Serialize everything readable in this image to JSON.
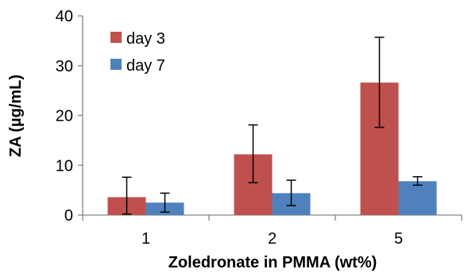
{
  "chart_data": {
    "type": "bar",
    "categories": [
      "1",
      "2",
      "5"
    ],
    "series": [
      {
        "name": "day 3",
        "color": "#C0504D",
        "values": [
          3.6,
          12.2,
          26.6
        ],
        "error_upper": [
          7.6,
          18.1,
          35.7
        ],
        "error_lower": [
          0.2,
          6.5,
          17.6
        ]
      },
      {
        "name": "day 7",
        "color": "#4F81BD",
        "values": [
          2.5,
          4.4,
          6.8
        ],
        "error_upper": [
          4.4,
          7.0,
          7.7
        ],
        "error_lower": [
          0.6,
          1.9,
          6.0
        ]
      }
    ],
    "y_ticks": [
      "0",
      "10",
      "20",
      "30",
      "40"
    ],
    "ylim": [
      0,
      40
    ],
    "xlabel": "Zoledronate in PMMA (wt%)",
    "ylabel": "ZA (µg/mL)",
    "legend_position": "top-left",
    "grid": false
  }
}
